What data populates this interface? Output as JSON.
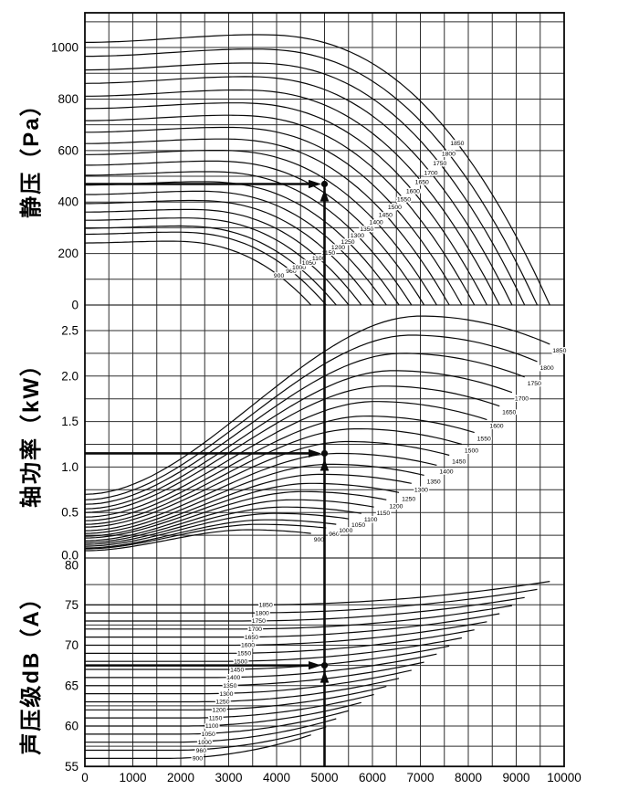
{
  "figure": {
    "background": "#ffffff",
    "ink_color": "#0a0a0a",
    "grid_color": "#2e2e2e"
  },
  "axis_titles": {
    "pressure": "静压（Pa）",
    "power": "轴功率（kW）",
    "noise": "声压级dB（A）"
  },
  "x_axis": {
    "min": 0,
    "max": 10000,
    "major_ticks": [
      0,
      1000,
      2000,
      3000,
      4000,
      5000,
      6000,
      7000,
      8000,
      9000,
      10000
    ],
    "minor_step": 500
  },
  "marker": {
    "flow": 5000,
    "pressure_pa": 470,
    "power_kw": 1.15,
    "noise_db": 67.5,
    "speed_curve": 1450
  },
  "chart_data": [
    {
      "type": "line",
      "id": "static-pressure",
      "ylabel": "静压（Pa）",
      "unit": "Pa",
      "ylim": [
        0,
        1135
      ],
      "yticks": [
        0,
        200,
        400,
        600,
        800,
        1000
      ],
      "grid_step": 100,
      "tick_decimals": 0,
      "legend": "curve labels are impeller speeds (r/min)",
      "series": [
        {
          "n": 900,
          "p0": 241,
          "p_peak": 248,
          "q_peak": 1751,
          "q_max": 4719
        },
        {
          "n": 960,
          "p0": 275,
          "p_peak": 283,
          "q_peak": 1868,
          "q_max": 5034
        },
        {
          "n": 1000,
          "p0": 298,
          "p_peak": 307,
          "q_peak": 1946,
          "q_max": 5243
        },
        {
          "n": 1050,
          "p0": 329,
          "p_peak": 338,
          "q_peak": 2043,
          "q_max": 5505
        },
        {
          "n": 1100,
          "p0": 361,
          "p_peak": 371,
          "q_peak": 2141,
          "q_max": 5768
        },
        {
          "n": 1150,
          "p0": 394,
          "p_peak": 406,
          "q_peak": 2238,
          "q_max": 6030
        },
        {
          "n": 1200,
          "p0": 429,
          "p_peak": 442,
          "q_peak": 2335,
          "q_max": 6292
        },
        {
          "n": 1250,
          "p0": 466,
          "p_peak": 479,
          "q_peak": 2432,
          "q_max": 6554
        },
        {
          "n": 1300,
          "p0": 504,
          "p_peak": 518,
          "q_peak": 2530,
          "q_max": 6816
        },
        {
          "n": 1350,
          "p0": 543,
          "p_peak": 559,
          "q_peak": 2627,
          "q_max": 7078
        },
        {
          "n": 1400,
          "p0": 584,
          "p_peak": 601,
          "q_peak": 2724,
          "q_max": 7341
        },
        {
          "n": 1450,
          "p0": 627,
          "p_peak": 645,
          "q_peak": 2822,
          "q_max": 7603
        },
        {
          "n": 1500,
          "p0": 671,
          "p_peak": 690,
          "q_peak": 2919,
          "q_max": 7865
        },
        {
          "n": 1550,
          "p0": 716,
          "p_peak": 737,
          "q_peak": 3016,
          "q_max": 8127
        },
        {
          "n": 1600,
          "p0": 763,
          "p_peak": 785,
          "q_peak": 3113,
          "q_max": 8389
        },
        {
          "n": 1650,
          "p0": 811,
          "p_peak": 835,
          "q_peak": 3211,
          "q_max": 8651
        },
        {
          "n": 1700,
          "p0": 861,
          "p_peak": 887,
          "q_peak": 3308,
          "q_max": 8913
        },
        {
          "n": 1750,
          "p0": 913,
          "p_peak": 940,
          "q_peak": 3405,
          "q_max": 9176
        },
        {
          "n": 1800,
          "p0": 966,
          "p_peak": 994,
          "q_peak": 3503,
          "q_max": 9438
        },
        {
          "n": 1850,
          "p0": 1020,
          "p_peak": 1050,
          "q_peak": 3600,
          "q_max": 9700
        }
      ]
    },
    {
      "type": "line",
      "id": "shaft-power",
      "ylabel": "轴功率（kW）",
      "unit": "kW",
      "ylim": [
        0,
        2.78
      ],
      "yticks": [
        0.0,
        0.5,
        1.0,
        1.5,
        2.0,
        2.5
      ],
      "grid_step": 0.25,
      "tick_decimals": 1,
      "series": [
        {
          "n": 900,
          "w0": 0.08,
          "w_peak": 0.31,
          "q_peak": 3405,
          "w_end": 0.27,
          "q_max": 4719
        },
        {
          "n": 960,
          "w0": 0.1,
          "w_peak": 0.37,
          "q_peak": 3632,
          "w_end": 0.33,
          "q_max": 5034
        },
        {
          "n": 1000,
          "w0": 0.11,
          "w_peak": 0.42,
          "q_peak": 3784,
          "w_end": 0.37,
          "q_max": 5243
        },
        {
          "n": 1050,
          "w0": 0.13,
          "w_peak": 0.49,
          "q_peak": 3973,
          "w_end": 0.43,
          "q_max": 5505
        },
        {
          "n": 1100,
          "w0": 0.15,
          "w_peak": 0.56,
          "q_peak": 4162,
          "w_end": 0.49,
          "q_max": 5768
        },
        {
          "n": 1150,
          "w0": 0.17,
          "w_peak": 0.64,
          "q_peak": 4351,
          "w_end": 0.56,
          "q_max": 6030
        },
        {
          "n": 1200,
          "w0": 0.19,
          "w_peak": 0.73,
          "q_peak": 4541,
          "w_end": 0.64,
          "q_max": 6292
        },
        {
          "n": 1250,
          "w0": 0.22,
          "w_peak": 0.82,
          "q_peak": 4730,
          "w_end": 0.72,
          "q_max": 6554
        },
        {
          "n": 1300,
          "w0": 0.24,
          "w_peak": 0.92,
          "q_peak": 4919,
          "w_end": 0.82,
          "q_max": 6816
        },
        {
          "n": 1350,
          "w0": 0.27,
          "w_peak": 1.03,
          "q_peak": 5108,
          "w_end": 0.91,
          "q_max": 7078
        },
        {
          "n": 1400,
          "w0": 0.3,
          "w_peak": 1.15,
          "q_peak": 5297,
          "w_end": 1.02,
          "q_max": 7341
        },
        {
          "n": 1450,
          "w0": 0.34,
          "w_peak": 1.28,
          "q_peak": 5486,
          "w_end": 1.13,
          "q_max": 7603
        },
        {
          "n": 1500,
          "w0": 0.37,
          "w_peak": 1.42,
          "q_peak": 5676,
          "w_end": 1.25,
          "q_max": 7865
        },
        {
          "n": 1550,
          "w0": 0.41,
          "w_peak": 1.56,
          "q_peak": 5865,
          "w_end": 1.38,
          "q_max": 8127
        },
        {
          "n": 1600,
          "w0": 0.45,
          "w_peak": 1.72,
          "q_peak": 6054,
          "w_end": 1.52,
          "q_max": 8389
        },
        {
          "n": 1650,
          "w0": 0.5,
          "w_peak": 1.89,
          "q_peak": 6243,
          "w_end": 1.67,
          "q_max": 8651
        },
        {
          "n": 1700,
          "w0": 0.54,
          "w_peak": 2.06,
          "q_peak": 6432,
          "w_end": 1.82,
          "q_max": 8913
        },
        {
          "n": 1750,
          "w0": 0.59,
          "w_peak": 2.25,
          "q_peak": 6622,
          "w_end": 1.99,
          "q_max": 9176
        },
        {
          "n": 1800,
          "w0": 0.64,
          "w_peak": 2.45,
          "q_peak": 6811,
          "w_end": 2.16,
          "q_max": 9438
        },
        {
          "n": 1850,
          "w0": 0.7,
          "w_peak": 2.66,
          "q_peak": 7000,
          "w_end": 2.35,
          "q_max": 9700
        }
      ]
    },
    {
      "type": "line",
      "id": "sound-pressure-level",
      "ylabel": "声压级dB（A）",
      "unit": "dB(A)",
      "ylim": [
        55,
        80
      ],
      "yticks": [
        55,
        60,
        65,
        70,
        75,
        80
      ],
      "grid_step": 2.5,
      "tick_decimals": 0,
      "series": [
        {
          "n": 900,
          "L0": 56,
          "L_end": 58.9,
          "q_rise": 1699,
          "q_max": 4719
        },
        {
          "n": 960,
          "L0": 57,
          "L_end": 59.9,
          "q_rise": 1812,
          "q_max": 5034
        },
        {
          "n": 1000,
          "L0": 58,
          "L_end": 60.9,
          "q_rise": 1887,
          "q_max": 5243
        },
        {
          "n": 1050,
          "L0": 59,
          "L_end": 61.9,
          "q_rise": 1982,
          "q_max": 5505
        },
        {
          "n": 1100,
          "L0": 60,
          "L_end": 62.9,
          "q_rise": 2076,
          "q_max": 5768
        },
        {
          "n": 1150,
          "L0": 61,
          "L_end": 63.9,
          "q_rise": 2171,
          "q_max": 6030
        },
        {
          "n": 1200,
          "L0": 62,
          "L_end": 64.9,
          "q_rise": 2265,
          "q_max": 6292
        },
        {
          "n": 1250,
          "L0": 63,
          "L_end": 65.9,
          "q_rise": 2359,
          "q_max": 6554
        },
        {
          "n": 1300,
          "L0": 64,
          "L_end": 66.9,
          "q_rise": 2454,
          "q_max": 6816
        },
        {
          "n": 1350,
          "L0": 65,
          "L_end": 67.9,
          "q_rise": 2548,
          "q_max": 7078
        },
        {
          "n": 1400,
          "L0": 66,
          "L_end": 68.9,
          "q_rise": 2643,
          "q_max": 7341
        },
        {
          "n": 1450,
          "L0": 67,
          "L_end": 69.9,
          "q_rise": 2737,
          "q_max": 7603
        },
        {
          "n": 1500,
          "L0": 68,
          "L_end": 70.9,
          "q_rise": 2831,
          "q_max": 7865
        },
        {
          "n": 1550,
          "L0": 69,
          "L_end": 71.9,
          "q_rise": 2926,
          "q_max": 8127
        },
        {
          "n": 1600,
          "L0": 70,
          "L_end": 72.9,
          "q_rise": 3020,
          "q_max": 8389
        },
        {
          "n": 1650,
          "L0": 71,
          "L_end": 73.9,
          "q_rise": 3114,
          "q_max": 8651
        },
        {
          "n": 1700,
          "L0": 72,
          "L_end": 74.9,
          "q_rise": 3209,
          "q_max": 8913
        },
        {
          "n": 1750,
          "L0": 73,
          "L_end": 75.9,
          "q_rise": 3303,
          "q_max": 9176
        },
        {
          "n": 1800,
          "L0": 74,
          "L_end": 76.9,
          "q_rise": 3398,
          "q_max": 9438
        },
        {
          "n": 1850,
          "L0": 75,
          "L_end": 77.9,
          "q_rise": 3492,
          "q_max": 9700
        }
      ]
    }
  ]
}
